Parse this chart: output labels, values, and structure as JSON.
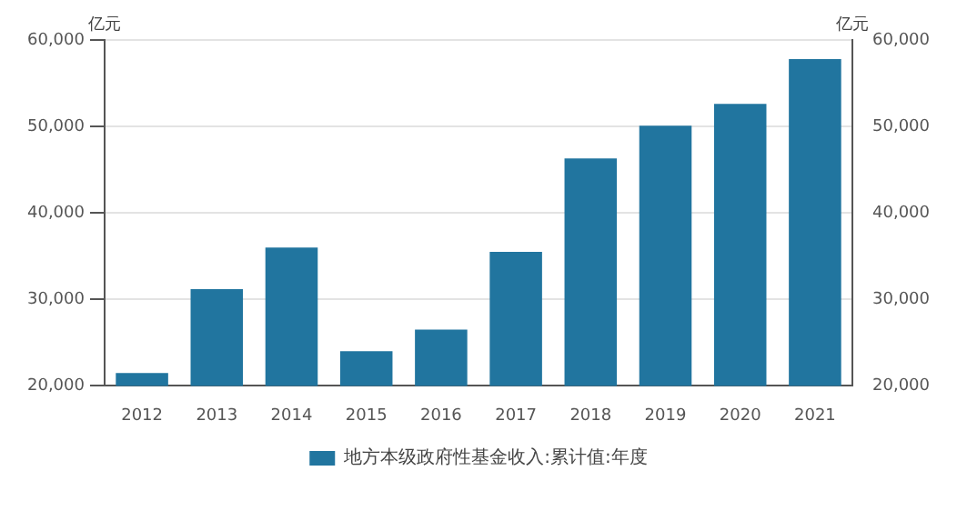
{
  "chart_data": {
    "type": "bar",
    "categories": [
      "2012",
      "2013",
      "2014",
      "2015",
      "2016",
      "2017",
      "2018",
      "2019",
      "2020",
      "2021"
    ],
    "series": [
      {
        "name": "地方本级政府性基金收入:累计值:年度",
        "color": "#21759f",
        "values": [
          21500,
          31200,
          36000,
          24000,
          26500,
          35500,
          46300,
          50100,
          52600,
          57800
        ]
      }
    ],
    "ylabel": "亿元",
    "y2label": "亿元",
    "ylim": [
      20000,
      60000
    ],
    "yticks": [
      {
        "value": 20000,
        "label": "20,000"
      },
      {
        "value": 30000,
        "label": "30,000"
      },
      {
        "value": 40000,
        "label": "40,000"
      },
      {
        "value": 50000,
        "label": "50,000"
      },
      {
        "value": 60000,
        "label": "60,000"
      }
    ],
    "y2lim": [
      20000,
      60000
    ],
    "y2ticks": [
      {
        "value": 20000,
        "label": "20,000"
      },
      {
        "value": 30000,
        "label": "30,000"
      },
      {
        "value": 40000,
        "label": "40,000"
      },
      {
        "value": 50000,
        "label": "50,000"
      },
      {
        "value": 60000,
        "label": "60,000"
      }
    ],
    "grid": "y",
    "legend": "bottom"
  }
}
